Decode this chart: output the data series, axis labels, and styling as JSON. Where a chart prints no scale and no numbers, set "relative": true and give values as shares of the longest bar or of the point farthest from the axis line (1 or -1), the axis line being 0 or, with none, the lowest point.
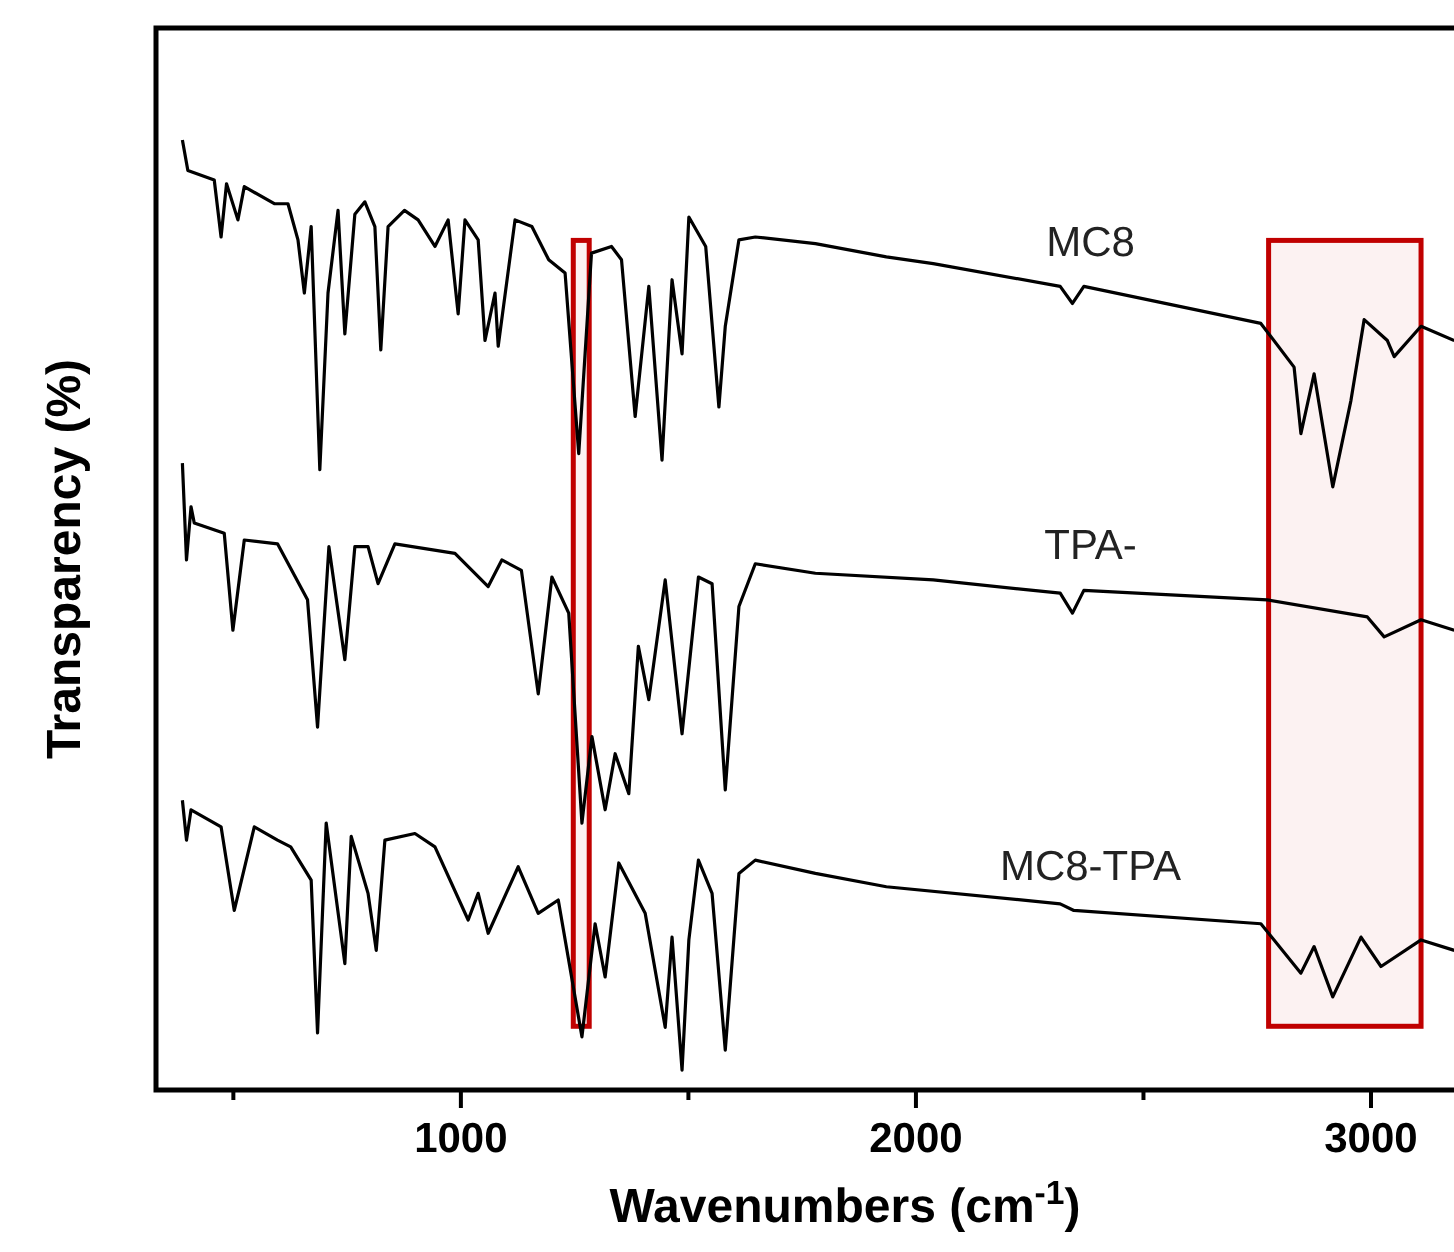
{
  "chart_data": {
    "type": "line",
    "relative": true,
    "xlabel": "Wavenumbers (cm$^{-1}$)",
    "ylabel": "Transparency (%)",
    "xlim": [
      330,
      3200
    ],
    "xticks": [
      {
        "value": 500,
        "label": null
      },
      1000,
      {
        "value": 1500,
        "label": null
      },
      2000,
      {
        "value": 2500,
        "label": null
      },
      3000
    ],
    "grid": false,
    "marker": "none",
    "line_style": "solid",
    "bands": [
      {
        "axis": "x",
        "from": 1247,
        "to": 1282,
        "color": "#c00000"
      },
      {
        "axis": "x",
        "from": 2775,
        "to": 3110,
        "color": "#c00000"
      }
    ],
    "series": [
      {
        "name": "MC8",
        "color": "#000000",
        "x": [
          388,
          400,
          458,
          473,
          485,
          510,
          524,
          590,
          620,
          642,
          656,
          671,
          690,
          708,
          730,
          745,
          767,
          789,
          811,
          824,
          840,
          876,
          906,
          943,
          972,
          994,
          1009,
          1038,
          1053,
          1075,
          1082,
          1119,
          1156,
          1193,
          1229,
          1259,
          1287,
          1331,
          1353,
          1383,
          1413,
          1442,
          1464,
          1486,
          1501,
          1538,
          1567,
          1581,
          1611,
          1647,
          1779,
          1935,
          2038,
          2317,
          2344,
          2369,
          2758,
          2831,
          2846,
          2875,
          2916,
          2956,
          2985,
          3036,
          3051,
          3110,
          3183
        ],
        "values": [
          1.0,
          0.968,
          0.958,
          0.898,
          0.954,
          0.916,
          0.951,
          0.933,
          0.933,
          0.895,
          0.839,
          0.909,
          0.653,
          0.839,
          0.926,
          0.796,
          0.922,
          0.935,
          0.909,
          0.779,
          0.909,
          0.926,
          0.916,
          0.888,
          0.916,
          0.817,
          0.916,
          0.895,
          0.789,
          0.839,
          0.783,
          0.916,
          0.909,
          0.874,
          0.86,
          0.67,
          0.881,
          0.888,
          0.874,
          0.709,
          0.846,
          0.663,
          0.853,
          0.775,
          0.919,
          0.888,
          0.719,
          0.804,
          0.895,
          0.898,
          0.891,
          0.877,
          0.87,
          0.846,
          0.828,
          0.846,
          0.807,
          0.761,
          0.691,
          0.754,
          0.635,
          0.726,
          0.811,
          0.789,
          0.772,
          0.804,
          0.789
        ]
      },
      {
        "name": "TPA-",
        "color": "#000000",
        "x": [
          388,
          397,
          407,
          414,
          480,
          499,
          524,
          597,
          663,
          685,
          710,
          745,
          767,
          796,
          818,
          855,
          987,
          1060,
          1090,
          1133,
          1170,
          1200,
          1237,
          1266,
          1288,
          1317,
          1339,
          1369,
          1390,
          1413,
          1449,
          1486,
          1522,
          1552,
          1581,
          1611,
          1647,
          1779,
          2038,
          2317,
          2344,
          2369,
          2772,
          2992,
          3029,
          3110,
          3183
        ],
        "values": [
          0.66,
          0.558,
          0.614,
          0.597,
          0.586,
          0.484,
          0.579,
          0.575,
          0.516,
          0.382,
          0.572,
          0.453,
          0.572,
          0.572,
          0.533,
          0.575,
          0.565,
          0.53,
          0.558,
          0.547,
          0.417,
          0.54,
          0.502,
          0.281,
          0.372,
          0.295,
          0.354,
          0.312,
          0.467,
          0.411,
          0.537,
          0.375,
          0.54,
          0.533,
          0.316,
          0.509,
          0.554,
          0.544,
          0.537,
          0.523,
          0.502,
          0.526,
          0.516,
          0.498,
          0.477,
          0.495,
          0.484
        ]
      },
      {
        "name": "MC8-TPA",
        "color": "#000000",
        "x": [
          388,
          397,
          407,
          473,
          502,
          546,
          597,
          626,
          671,
          685,
          704,
          745,
          759,
          796,
          814,
          833,
          899,
          943,
          1016,
          1038,
          1060,
          1126,
          1170,
          1214,
          1266,
          1295,
          1317,
          1347,
          1405,
          1449,
          1464,
          1486,
          1501,
          1522,
          1552,
          1581,
          1611,
          1647,
          1779,
          1935,
          2317,
          2347,
          2758,
          2846,
          2875,
          2916,
          2978,
          3022,
          3110,
          3183
        ],
        "values": [
          0.305,
          0.263,
          0.295,
          0.277,
          0.189,
          0.277,
          0.263,
          0.256,
          0.221,
          0.06,
          0.281,
          0.133,
          0.267,
          0.207,
          0.147,
          0.263,
          0.27,
          0.256,
          0.179,
          0.207,
          0.165,
          0.235,
          0.186,
          0.2,
          0.056,
          0.175,
          0.119,
          0.239,
          0.186,
          0.066,
          0.161,
          0.021,
          0.158,
          0.242,
          0.207,
          0.042,
          0.228,
          0.242,
          0.228,
          0.214,
          0.196,
          0.189,
          0.175,
          0.123,
          0.151,
          0.098,
          0.161,
          0.13,
          0.158,
          0.147
        ]
      }
    ]
  }
}
